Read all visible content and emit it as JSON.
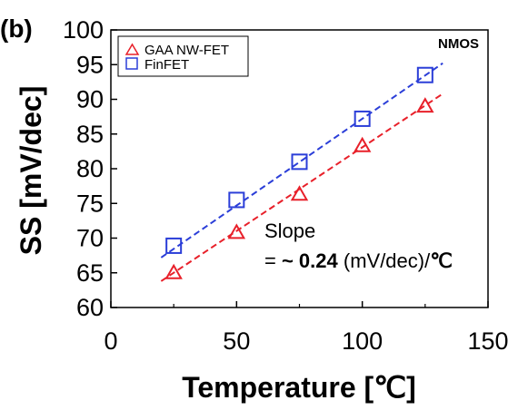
{
  "panel_label": "(b)",
  "colors": {
    "gaa": "#e8202a",
    "finfet": "#2b3ed8",
    "axis": "#000000"
  },
  "chart_data": {
    "type": "scatter",
    "title": "",
    "xlabel": "Temperature [℃]",
    "ylabel": "SS [mV/dec]",
    "xlim": [
      0,
      150
    ],
    "ylim": [
      60,
      100
    ],
    "xticks": [
      0,
      50,
      100,
      150
    ],
    "xtick_labels": [
      "0",
      "50",
      "100",
      "150"
    ],
    "yticks": [
      60,
      65,
      70,
      75,
      80,
      85,
      90,
      95,
      100
    ],
    "ytick_labels": [
      "60",
      "65",
      "70",
      "75",
      "80",
      "85",
      "90",
      "95",
      "100"
    ],
    "grid": false,
    "legend_position": "top-left",
    "corner_note": "NMOS",
    "series": [
      {
        "name": "GAA NW-FET",
        "marker": "triangle",
        "color": "#e8202a",
        "x": [
          25,
          50,
          75,
          100,
          125
        ],
        "y": [
          65.0,
          70.8,
          76.3,
          83.3,
          89.0
        ],
        "fit": {
          "x": [
            20,
            132
          ],
          "y": [
            63.8,
            90.8
          ]
        }
      },
      {
        "name": "FinFET",
        "marker": "square",
        "color": "#2b3ed8",
        "x": [
          25,
          50,
          75,
          100,
          125
        ],
        "y": [
          68.9,
          75.5,
          81.0,
          87.2,
          93.5
        ],
        "fit": {
          "x": [
            20,
            132
          ],
          "y": [
            67.2,
            95.2
          ]
        }
      }
    ],
    "annotation": {
      "line1": "Slope",
      "prefix": "= ",
      "bold_value": "~ 0.24",
      "unit": " (mV/dec)/",
      "bold_unit": "℃"
    }
  }
}
